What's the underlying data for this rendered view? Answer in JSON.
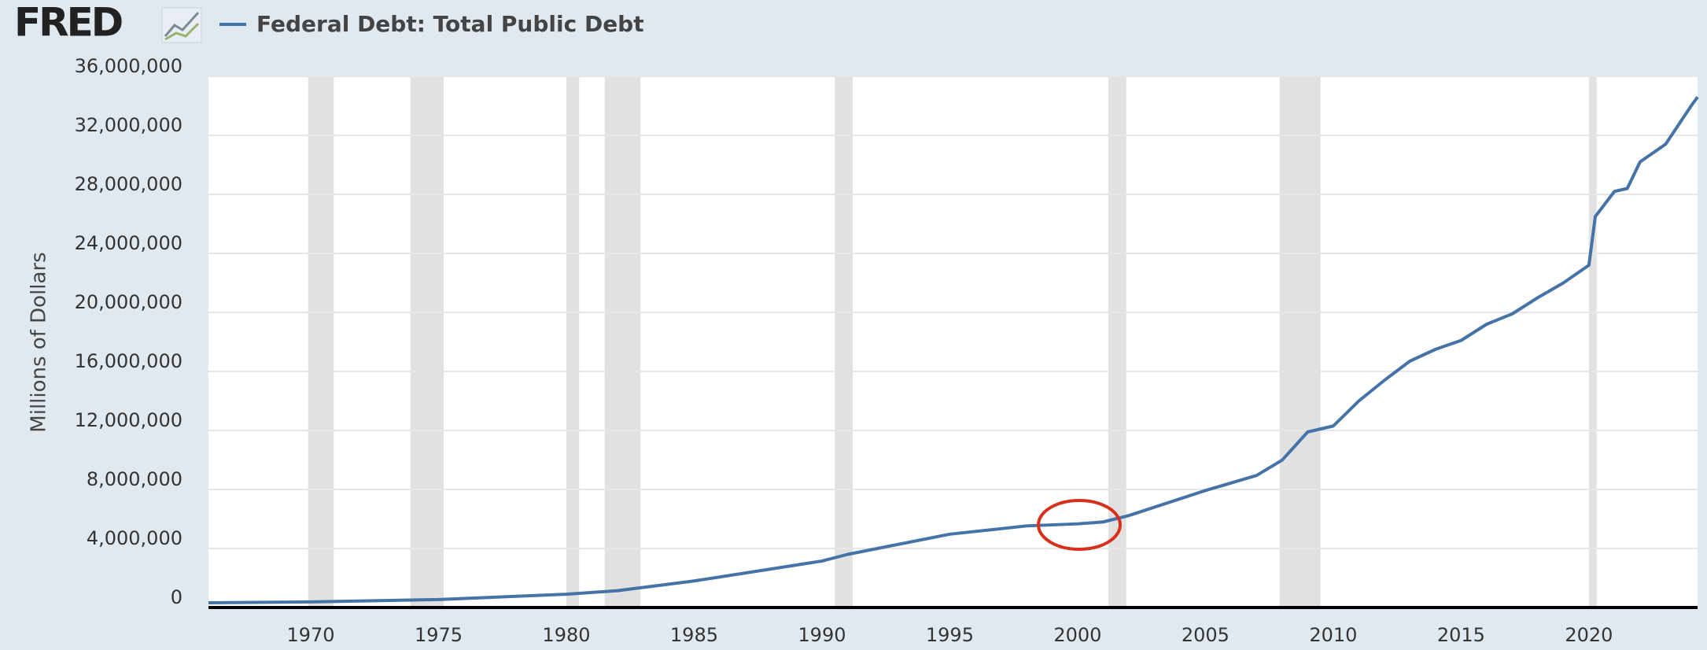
{
  "logo": "FRED",
  "chart_data": {
    "type": "line",
    "series": [
      {
        "name": "Federal Debt: Total Public Debt",
        "color": "#4572a7",
        "x": [
          1966,
          1970,
          1975,
          1980,
          1982,
          1985,
          1990,
          1991,
          1995,
          1998,
          2000,
          2001,
          2002,
          2005,
          2007,
          2008,
          2009,
          2010,
          2011,
          2012,
          2013,
          2014,
          2015,
          2016,
          2017,
          2018,
          2019,
          2020,
          2020.25,
          2021,
          2021.5,
          2022,
          2023,
          2024,
          2024.25
        ],
        "values": [
          320000,
          380000,
          540000,
          900000,
          1140000,
          1800000,
          3150000,
          3600000,
          4970000,
          5530000,
          5670000,
          5800000,
          6230000,
          7930000,
          8950000,
          9990000,
          11900000,
          12300000,
          14000000,
          15400000,
          16700000,
          17500000,
          18100000,
          19200000,
          19900000,
          21000000,
          22000000,
          23200000,
          26500000,
          28200000,
          28400000,
          30200000,
          31400000,
          34000000,
          34600000
        ]
      }
    ],
    "recessions": [
      {
        "start": 1969.9,
        "end": 1970.9
      },
      {
        "start": 1973.9,
        "end": 1975.2
      },
      {
        "start": 1980.0,
        "end": 1980.5
      },
      {
        "start": 1981.5,
        "end": 1982.9
      },
      {
        "start": 1990.5,
        "end": 1991.2
      },
      {
        "start": 2001.2,
        "end": 2001.9
      },
      {
        "start": 2007.9,
        "end": 2009.5
      },
      {
        "start": 2020.0,
        "end": 2020.3
      }
    ],
    "recession_color": "#e1e1e1",
    "y_label": "Millions of Dollars",
    "xlim": [
      1966,
      2024.25
    ],
    "xticks": [
      1970,
      1975,
      1980,
      1985,
      1990,
      1995,
      2000,
      2005,
      2010,
      2015,
      2020
    ],
    "ylim": [
      0,
      36000000
    ],
    "yticks": [
      0,
      {
        "value": 4000000,
        "label": "4,000,000"
      },
      {
        "value": 8000000,
        "label": "8,000,000"
      },
      {
        "value": 12000000,
        "label": "12,000,000"
      },
      {
        "value": 16000000,
        "label": "16,000,000"
      },
      {
        "value": 20000000,
        "label": "20,000,000"
      },
      {
        "value": 24000000,
        "label": "24,000,000"
      },
      {
        "value": 28000000,
        "label": "28,000,000"
      },
      {
        "value": 32000000,
        "label": "32,000,000"
      },
      {
        "value": 36000000,
        "label": "36,000,000"
      }
    ],
    "grid": true
  }
}
